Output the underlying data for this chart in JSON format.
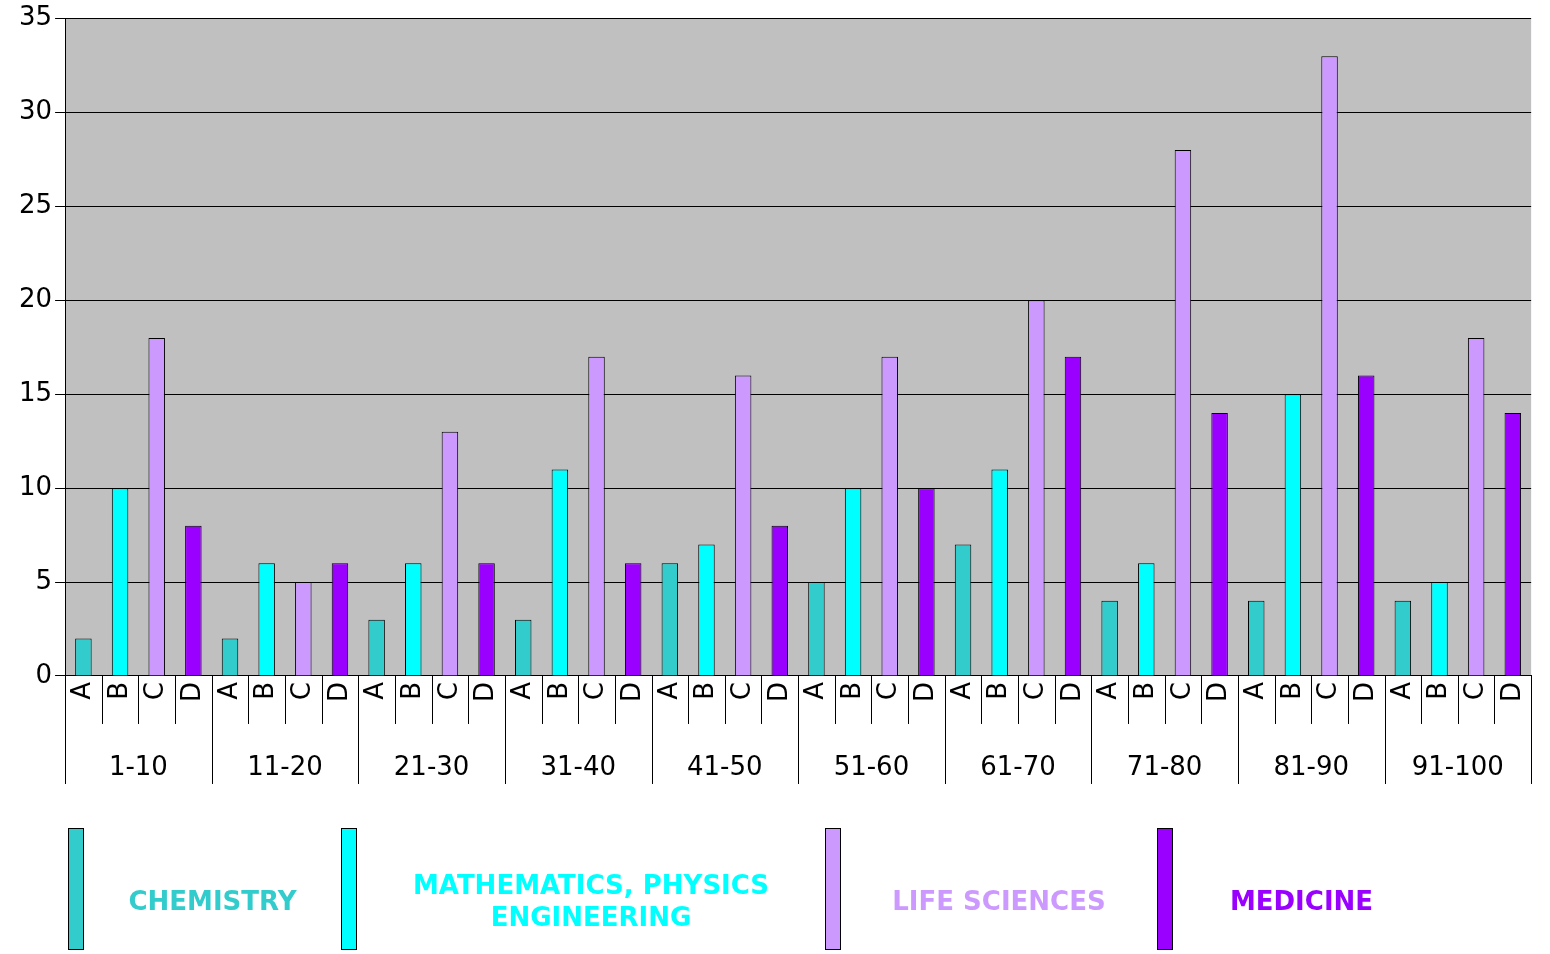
{
  "chart_data": {
    "type": "bar",
    "categories": [
      "A",
      "B",
      "C",
      "D",
      "A",
      "B",
      "C",
      "D",
      "A",
      "B",
      "C",
      "D",
      "A",
      "B",
      "C",
      "D",
      "A",
      "B",
      "C",
      "D",
      "A",
      "B",
      "C",
      "D",
      "A",
      "B",
      "C",
      "D",
      "A",
      "B",
      "C",
      "D",
      "A",
      "B",
      "C",
      "D",
      "A",
      "B",
      "C",
      "D"
    ],
    "series": [
      {
        "name": "CHEMISTRY",
        "color": "#33cccc",
        "values": [
          2,
          null,
          null,
          null,
          2,
          null,
          null,
          null,
          3,
          null,
          null,
          null,
          3,
          null,
          null,
          null,
          6,
          null,
          null,
          null,
          5,
          null,
          null,
          null,
          7,
          null,
          null,
          null,
          4,
          null,
          null,
          null,
          4,
          null,
          null,
          null,
          4,
          null,
          null,
          null
        ]
      },
      {
        "name": "MATHEMATICS, PHYSICS ENGINEERING",
        "color": "#00ffff",
        "values": [
          null,
          10,
          null,
          null,
          null,
          6,
          null,
          null,
          null,
          6,
          null,
          null,
          null,
          11,
          null,
          null,
          null,
          7,
          null,
          null,
          null,
          10,
          null,
          null,
          null,
          11,
          null,
          null,
          null,
          6,
          null,
          null,
          null,
          15,
          null,
          null,
          null,
          5,
          null,
          null
        ]
      },
      {
        "name": "LIFE SCIENCES",
        "color": "#cc99ff",
        "values": [
          null,
          null,
          18,
          null,
          null,
          null,
          5,
          null,
          null,
          null,
          13,
          null,
          null,
          null,
          17,
          null,
          null,
          null,
          16,
          null,
          null,
          null,
          17,
          null,
          null,
          null,
          20,
          null,
          null,
          null,
          28,
          null,
          null,
          null,
          33,
          null,
          null,
          null,
          18,
          null
        ]
      },
      {
        "name": "MEDICINE",
        "color": "#9900ff",
        "values": [
          null,
          null,
          null,
          8,
          null,
          null,
          null,
          6,
          null,
          null,
          null,
          6,
          null,
          null,
          null,
          6,
          null,
          null,
          null,
          8,
          null,
          null,
          null,
          10,
          null,
          null,
          null,
          17,
          null,
          null,
          null,
          14,
          null,
          null,
          null,
          16,
          null,
          null,
          null,
          14
        ]
      }
    ],
    "annotations": [
      "1-10",
      "11-20",
      "21-30",
      "31-40",
      "41-50",
      "51-60",
      "61-70",
      "71-80",
      "81-90",
      "91-100"
    ],
    "ylim": [
      0,
      35
    ],
    "yticks": [
      0,
      5,
      10,
      15,
      20,
      25,
      30,
      35
    ],
    "grid": "y",
    "legend": "bottom"
  }
}
